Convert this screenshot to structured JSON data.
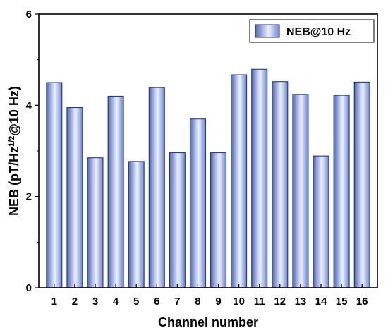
{
  "chart_data": {
    "type": "bar",
    "categories": [
      "1",
      "2",
      "3",
      "4",
      "5",
      "6",
      "7",
      "8",
      "9",
      "10",
      "11",
      "12",
      "13",
      "14",
      "15",
      "16"
    ],
    "series": [
      {
        "name": "NEB@10 Hz",
        "values": [
          4.5,
          3.95,
          2.85,
          4.2,
          2.77,
          4.39,
          2.96,
          3.7,
          2.96,
          4.67,
          4.79,
          4.52,
          4.24,
          2.89,
          4.22,
          4.51
        ]
      }
    ],
    "xlabel": "Channel number",
    "ylabel": {
      "prefix": "NEB (pT/Hz",
      "superscript": "1/2",
      "suffix": "@10 Hz)"
    },
    "ylim": [
      0,
      6
    ],
    "yticks": [
      "0",
      "2",
      "4",
      "6"
    ],
    "grid": false,
    "legend_position": "top-right",
    "colors": {
      "bar_edge": "#1f2f66",
      "bar_dark": "#5e78c4",
      "bar_light": "#eef2ff",
      "axis": "#000000"
    }
  }
}
